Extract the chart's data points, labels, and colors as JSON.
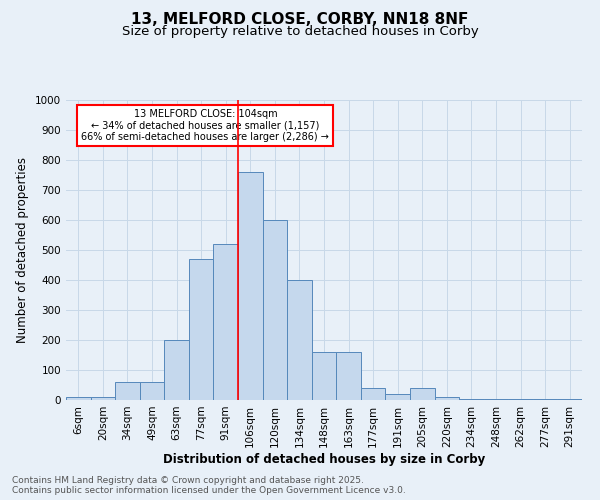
{
  "title_line1": "13, MELFORD CLOSE, CORBY, NN18 8NF",
  "title_line2": "Size of property relative to detached houses in Corby",
  "categories": [
    "6sqm",
    "20sqm",
    "34sqm",
    "49sqm",
    "63sqm",
    "77sqm",
    "91sqm",
    "106sqm",
    "120sqm",
    "134sqm",
    "148sqm",
    "163sqm",
    "177sqm",
    "191sqm",
    "205sqm",
    "220sqm",
    "234sqm",
    "248sqm",
    "262sqm",
    "277sqm",
    "291sqm"
  ],
  "values": [
    10,
    10,
    60,
    60,
    200,
    470,
    520,
    760,
    600,
    400,
    160,
    160,
    40,
    20,
    40,
    10,
    5,
    5,
    5,
    5,
    5
  ],
  "bar_color": "#c5d8ed",
  "bar_edge_color": "#5588bb",
  "vline_x_index": 7,
  "vline_color": "red",
  "ylabel": "Number of detached properties",
  "xlabel": "Distribution of detached houses by size in Corby",
  "annotation_text": "13 MELFORD CLOSE: 104sqm\n← 34% of detached houses are smaller (1,157)\n66% of semi-detached houses are larger (2,286) →",
  "annotation_box_color": "white",
  "annotation_box_edge": "red",
  "ylim": [
    0,
    1000
  ],
  "yticks": [
    0,
    100,
    200,
    300,
    400,
    500,
    600,
    700,
    800,
    900,
    1000
  ],
  "footnote": "Contains HM Land Registry data © Crown copyright and database right 2025.\nContains public sector information licensed under the Open Government Licence v3.0.",
  "bg_color": "#e8f0f8",
  "plot_bg_color": "#e8f0f8",
  "grid_color": "#c8d8e8",
  "title_fontsize": 11,
  "subtitle_fontsize": 9.5,
  "label_fontsize": 8.5,
  "tick_fontsize": 7.5,
  "footnote_fontsize": 6.5
}
